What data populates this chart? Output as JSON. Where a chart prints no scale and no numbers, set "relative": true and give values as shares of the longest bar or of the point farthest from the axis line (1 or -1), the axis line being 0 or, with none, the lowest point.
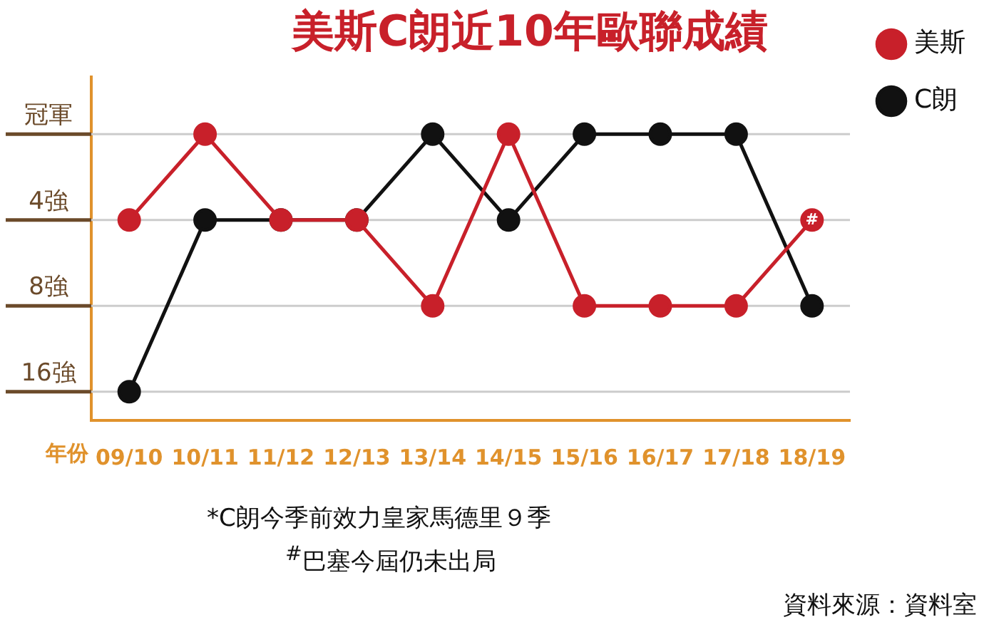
{
  "chart_data": {
    "type": "line",
    "title": "美斯C朗近10年歐聯成績",
    "xlabel": "年份",
    "categories": [
      "09/10",
      "10/11",
      "11/12",
      "12/13",
      "13/14",
      "14/15",
      "15/16",
      "16/17",
      "17/18",
      "18/19"
    ],
    "relative": true,
    "series": [
      {
        "name": "美斯",
        "color": "#c8202a",
        "values": [
          0.7,
          1,
          0.7,
          0.7,
          0.4,
          1,
          0.4,
          0.4,
          0.4,
          0.7
        ]
      },
      {
        "name": "C朗",
        "color": "#111111",
        "values": [
          0.1,
          0.7,
          0.7,
          0.7,
          1,
          0.7,
          1,
          1,
          1,
          0.4
        ]
      }
    ],
    "ref_lines": [
      {
        "axis": "y",
        "value": 1,
        "label": "冠軍"
      },
      {
        "axis": "y",
        "value": 0.7,
        "label": "4強"
      },
      {
        "axis": "y",
        "value": 0.4,
        "label": "8強"
      },
      {
        "axis": "y",
        "value": 0.1,
        "label": "16強"
      }
    ],
    "legend": "top right",
    "marker": "circle",
    "line_style": "solid",
    "annotations": [
      {
        "text": "#",
        "x": "18/19",
        "y": 0.7
      },
      "*C朗今季前效力皇家馬德里９季",
      "$^{#}$巴塞今屆仍未出局",
      "資料來源：資料室"
    ]
  }
}
